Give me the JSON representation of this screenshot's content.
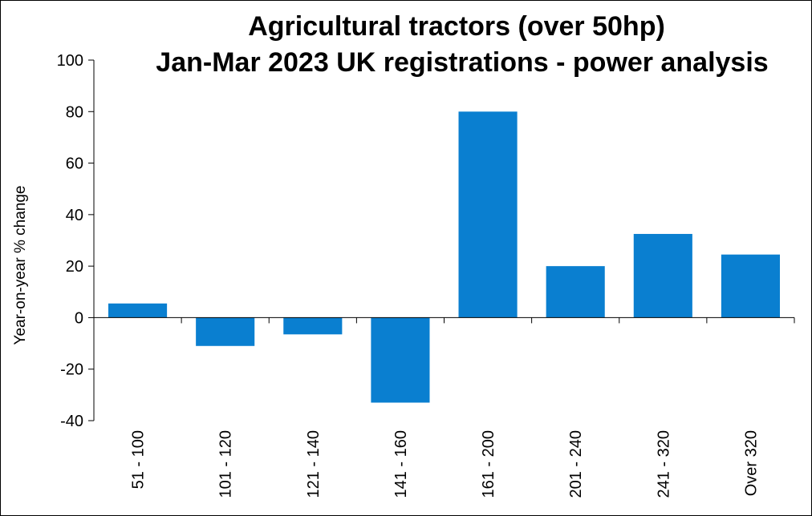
{
  "chart_data": {
    "type": "bar",
    "title_lines": [
      "Agricultural tractors (over 50hp)",
      "Jan-Mar 2023 UK registrations - power analysis"
    ],
    "xlabel": "",
    "ylabel": "Year-on-year  % change",
    "categories": [
      "51 - 100",
      "101 - 120",
      "121 - 140",
      "141 - 160",
      "161 - 200",
      "201 - 240",
      "241 - 320",
      "Over 320"
    ],
    "values": [
      5.5,
      -11,
      -6.5,
      -33,
      80,
      20,
      32.5,
      24.5
    ],
    "ylim": [
      -40,
      100
    ],
    "yticks": [
      -40,
      -20,
      0,
      20,
      40,
      60,
      80,
      100
    ],
    "grid": false,
    "bar_color": "#0a7fd0"
  }
}
